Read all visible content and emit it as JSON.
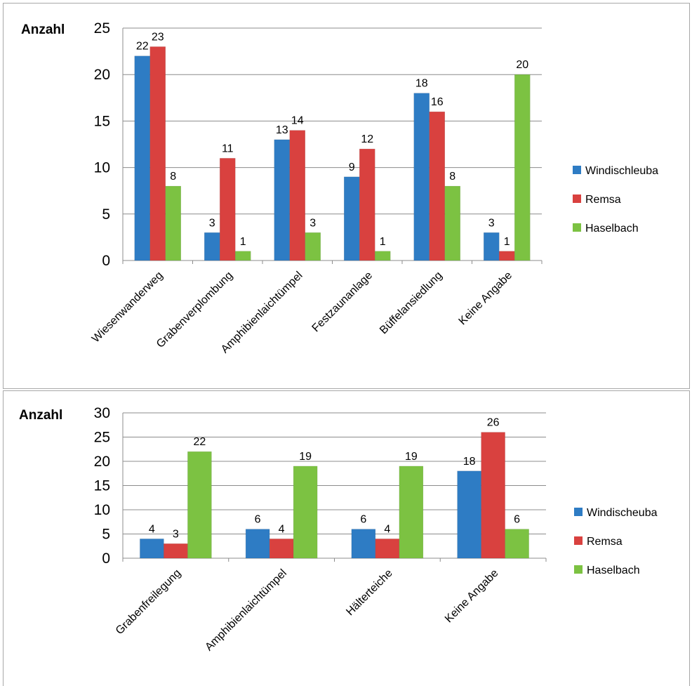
{
  "chart_data": [
    {
      "type": "bar",
      "ylabel": "Anzahl",
      "ylim": [
        0,
        25
      ],
      "yticks": [
        0,
        5,
        10,
        15,
        20,
        25
      ],
      "grid": true,
      "legend_position": "right",
      "categories": [
        "Wiesenwanderweg",
        "Grabenverplombung",
        "Amphibienlaichtümpel",
        "Festzaunanlage",
        "Büffelansiedlung",
        "Keine Angabe"
      ],
      "series": [
        {
          "name": "Windischleuba",
          "color": "#2e7cc4",
          "values": [
            22,
            3,
            13,
            9,
            18,
            3
          ]
        },
        {
          "name": "Remsa",
          "color": "#d9413f",
          "values": [
            23,
            11,
            14,
            12,
            16,
            1
          ]
        },
        {
          "name": "Haselbach",
          "color": "#7cc242",
          "values": [
            8,
            1,
            3,
            1,
            8,
            20
          ]
        }
      ]
    },
    {
      "type": "bar",
      "ylabel": "Anzahl",
      "ylim": [
        0,
        30
      ],
      "yticks": [
        0,
        5,
        10,
        15,
        20,
        25,
        30
      ],
      "grid": true,
      "legend_position": "right",
      "categories": [
        "Grabenfreilegung",
        "Amphibienlaichtümpel",
        "Hälterteiche",
        "Keine Angabe"
      ],
      "series": [
        {
          "name": "Windischeuba",
          "color": "#2e7cc4",
          "values": [
            4,
            6,
            6,
            18
          ]
        },
        {
          "name": "Remsa",
          "color": "#d9413f",
          "values": [
            3,
            4,
            4,
            26
          ]
        },
        {
          "name": "Haselbach",
          "color": "#7cc242",
          "values": [
            22,
            19,
            19,
            6
          ]
        }
      ]
    }
  ]
}
